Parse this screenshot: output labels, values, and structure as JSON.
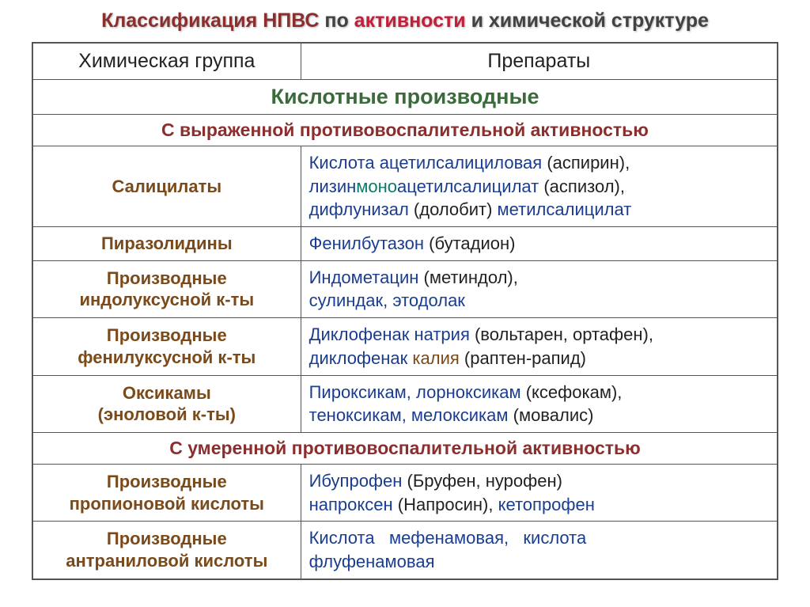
{
  "title": {
    "t1": "Классификация НПВС",
    "t2": " по ",
    "t3": "активности",
    "t4": " и химической структуре"
  },
  "headers": {
    "col1": "Химическая  группа",
    "col2": "Препараты"
  },
  "section_acid": "Кислотные производные",
  "section_strong": "С выраженной противовоспалительной активностью",
  "section_moderate": "С умеренной противовоспалительной активностью",
  "rows": {
    "salicylates": {
      "group": "Салицилаты",
      "drugs_html": "<span class='drug-blue'>Кислота ацетилсалициловая</span> <span class='paren'>(аспирин),</span><br><span class='drug-blue'>лизин</span><span class='drug-teal'>моно</span><span class='drug-blue'>ацетилсалицилат</span> <span class='paren'>(аспизол),</span><br><span class='drug-blue'>дифлунизал </span><span class='paren'>(долобит) </span><span class='drug-blue'>метилсалицилат</span>"
    },
    "pyrazolidines": {
      "group": "Пиразолидины",
      "drugs_html": "<span class='drug-blue'>Фенилбутазон</span> <span class='paren'>(бутадион)</span>"
    },
    "indole": {
      "group": "Производные<br>индолуксусной к-ты",
      "drugs_html": "<span class='drug-blue'>Индометацин</span> <span class='paren'>(метиндол),</span><br><span class='drug-blue'>сулиндак, этодолак</span>"
    },
    "phenyl": {
      "group": "Производные<br>фенилуксусной к-ты",
      "drugs_html": "<span class='drug-blue'>Диклофенак натрия </span><span class='paren'>(вольтарен, ортафен),</span><br><span class='drug-blue'>диклофенак </span><span class='drug-brown'>калия</span> <span class='paren'>(раптен-рапид)</span>"
    },
    "oxicams": {
      "group": "Оксикамы<br>(эноловой к-ты)",
      "drugs_html": "<span class='drug-blue'>Пироксикам, лорноксикам</span> <span class='paren'>(ксефокам),</span><br><span class='drug-blue'>теноксикам, мелоксикам</span> <span class='paren'>(мовалис)</span>"
    },
    "propionic": {
      "group": "Производные<br>пропионовой кислоты",
      "drugs_html": "<span class='drug-blue'>Ибупрофен</span> <span class='paren'>(Бруфен, нурофен)</span><br><span class='drug-blue'>напроксен</span> <span class='paren'>(Напросин), </span><span class='drug-blue'>кетопрофен</span>"
    },
    "anthranilic": {
      "group": "Производные<br>антраниловой кислоты",
      "drugs_html": "<span class='drug-blue'>Кислота&nbsp;&nbsp; мефенамовая,&nbsp;&nbsp; кислота<br>флуфенамовая</span>"
    }
  }
}
